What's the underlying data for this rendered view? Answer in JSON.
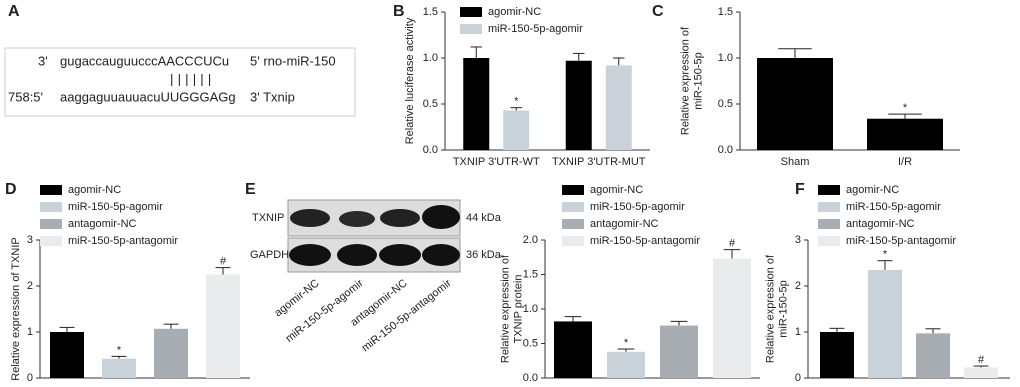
{
  "sequence": {
    "panel": "A",
    "mirna": {
      "end5": "3'",
      "seq": "gugaccauguucccAACCCUCu",
      "end3": "5' rno-miR-150"
    },
    "pairing": "||||||",
    "target": {
      "end5": "758:5'",
      "seq": "aaggaguuauuacuUUGGGAGg",
      "end3": "3' Txnip"
    }
  },
  "blot": {
    "bands": [
      {
        "name": "TXNIP",
        "size": "44 kDa"
      },
      {
        "name": "GAPDH",
        "size": "36 kDa"
      }
    ],
    "lanes": [
      "agomir-NC",
      "miR-150-5p-agomir",
      "antagomir-NC",
      "miR-150-5p-antagomir"
    ]
  },
  "chart_data": [
    {
      "type": "bar",
      "panel": "B",
      "ylabel": [
        "Relative luciferase activity"
      ],
      "categories": [
        "TXNIP 3'UTR-WT",
        "TXNIP 3'UTR-MUT"
      ],
      "series": [
        {
          "name": "agomir-NC",
          "color": "#000000",
          "values": [
            1.0,
            0.97
          ],
          "errors": [
            0.12,
            0.08
          ],
          "annotations": [
            null,
            null
          ]
        },
        {
          "name": "miR-150-5p-agomir",
          "color": "#c9d1d9",
          "values": [
            0.43,
            0.92
          ],
          "errors": [
            0.03,
            0.08
          ],
          "annotations": [
            "*",
            null
          ]
        }
      ],
      "ylim": [
        0,
        1.5
      ],
      "yticks": [
        {
          "value": 0,
          "label": "0.0"
        },
        {
          "value": 0.5,
          "label": "0.5"
        },
        {
          "value": 1,
          "label": "1.0"
        },
        {
          "value": 1.5,
          "label": "1.5"
        }
      ]
    },
    {
      "type": "bar",
      "panel": "C",
      "ylabel": [
        "Relative expression of",
        "miR-150-5p"
      ],
      "categories": [
        "Sham",
        "I/R"
      ],
      "series": [
        {
          "color": "#000000",
          "values": [
            1.0,
            0.34
          ],
          "errors": [
            0.1,
            0.05
          ],
          "annotations": [
            null,
            "*"
          ]
        }
      ],
      "ylim": [
        0,
        1.5
      ],
      "yticks": [
        {
          "value": 0,
          "label": "0.0"
        },
        {
          "value": 0.5,
          "label": "0.5"
        },
        {
          "value": 1,
          "label": "1.0"
        },
        {
          "value": 1.5,
          "label": "1.5"
        }
      ]
    },
    {
      "type": "bar",
      "panel": "D",
      "ylabel": [
        "Relative expression of TXNIP"
      ],
      "categories": [
        null
      ],
      "series": [
        {
          "name": "agomir-NC",
          "color": "#000000",
          "values": [
            1.0
          ],
          "errors": [
            0.1
          ],
          "annotations": [
            null
          ]
        },
        {
          "name": "miR-150-5p-agomir",
          "color": "#c9d1d9",
          "values": [
            0.42
          ],
          "errors": [
            0.05
          ],
          "annotations": [
            "*"
          ]
        },
        {
          "name": "antagomir-NC",
          "color": "#a7adb2",
          "values": [
            1.07
          ],
          "errors": [
            0.1
          ],
          "annotations": [
            null
          ]
        },
        {
          "name": "miR-150-5p-antagomir",
          "color": "#e9ebed",
          "values": [
            2.25
          ],
          "errors": [
            0.15
          ],
          "annotations": [
            "#"
          ]
        }
      ],
      "ylim": [
        0,
        3
      ],
      "yticks": [
        0,
        1,
        2,
        3
      ]
    },
    {
      "type": "bar",
      "panel": "E",
      "ylabel": [
        "Relative expression of",
        "TXNIP protein"
      ],
      "categories": [
        null
      ],
      "series": [
        {
          "name": "agomir-NC",
          "color": "#000000",
          "values": [
            0.82
          ],
          "errors": [
            0.07
          ],
          "annotations": [
            null
          ]
        },
        {
          "name": "miR-150-5p-agomir",
          "color": "#c9d1d9",
          "values": [
            0.38
          ],
          "errors": [
            0.04
          ],
          "annotations": [
            "*"
          ]
        },
        {
          "name": "antagomir-NC",
          "color": "#a7adb2",
          "values": [
            0.76
          ],
          "errors": [
            0.06
          ],
          "annotations": [
            null
          ]
        },
        {
          "name": "miR-150-5p-antagomir",
          "color": "#e9ebed",
          "values": [
            1.73
          ],
          "errors": [
            0.13
          ],
          "annotations": [
            "#"
          ]
        }
      ],
      "ylim": [
        0,
        2
      ],
      "yticks": [
        {
          "value": 0,
          "label": "0.0"
        },
        {
          "value": 0.5,
          "label": "0.5"
        },
        {
          "value": 1,
          "label": "1.0"
        },
        {
          "value": 1.5,
          "label": "1.5"
        },
        {
          "value": 2,
          "label": "2.0"
        }
      ]
    },
    {
      "type": "bar",
      "panel": "F",
      "ylabel": [
        "Relative expression of",
        "miR-150-5p"
      ],
      "categories": [
        null
      ],
      "series": [
        {
          "name": "agomir-NC",
          "color": "#000000",
          "values": [
            1.0
          ],
          "errors": [
            0.08
          ],
          "annotations": [
            null
          ]
        },
        {
          "name": "miR-150-5p-agomir",
          "color": "#c9d1d9",
          "values": [
            2.35
          ],
          "errors": [
            0.2
          ],
          "annotations": [
            "*"
          ]
        },
        {
          "name": "antagomir-NC",
          "color": "#a7adb2",
          "values": [
            0.97
          ],
          "errors": [
            0.1
          ],
          "annotations": [
            null
          ]
        },
        {
          "name": "miR-150-5p-antagomir",
          "color": "#e9ebed",
          "values": [
            0.23
          ],
          "errors": [
            0.03
          ],
          "annotations": [
            "#"
          ]
        }
      ],
      "ylim": [
        0,
        3
      ],
      "yticks": [
        0,
        1,
        2,
        3
      ]
    }
  ]
}
